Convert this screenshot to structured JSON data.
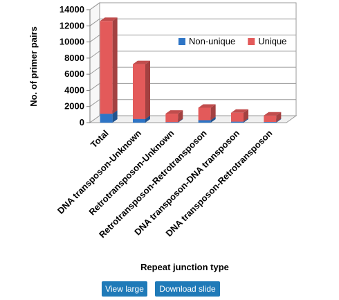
{
  "chart_data": {
    "type": "bar",
    "stacked": true,
    "style": "3d",
    "categories": [
      "Total",
      "DNA transposon-Unknown",
      "Retrotransposon-Unknown",
      "Retrotransposon-Retrotransposon",
      "DNA transposon-DNA transposon",
      "DNA transposon-Retrotransposon"
    ],
    "series": [
      {
        "name": "Non-unique",
        "values": [
          1100,
          450,
          60,
          300,
          120,
          80
        ],
        "color": "#2e75c6"
      },
      {
        "name": "Unique",
        "values": [
          11500,
          6800,
          1050,
          1550,
          1100,
          800
        ],
        "color": "#e35a5a"
      }
    ],
    "xlabel": "Repeat junction type",
    "ylabel": "No. of primer pairs",
    "ylim": [
      0,
      14000
    ],
    "yticks": [
      "0",
      "2000",
      "4000",
      "6000",
      "8000",
      "10000",
      "12000",
      "14000"
    ],
    "grid": true,
    "legend": "top-right"
  },
  "buttons": {
    "view_large": "View large",
    "download_slide": "Download slide"
  }
}
